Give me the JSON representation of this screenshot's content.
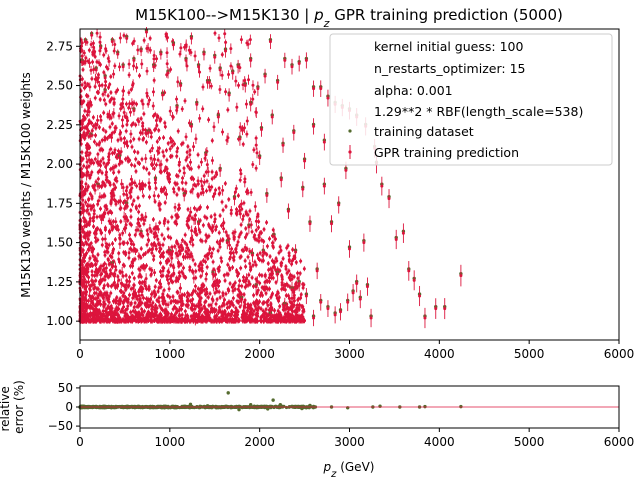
{
  "chart_data": [
    {
      "type": "scatter",
      "title_prefix": "M15K100-->M15K130 | ",
      "title_var": "p",
      "title_sub": "z",
      "title_suffix": " GPR training prediction (5000)",
      "xlabel": "",
      "ylabel": "M15K130 weights / M15K100 weights",
      "xlim": [
        0,
        6000
      ],
      "ylim": [
        0.88,
        2.86
      ],
      "xticks": [
        "0",
        "1000",
        "2000",
        "3000",
        "4000",
        "5000",
        "6000"
      ],
      "yticks": [
        "1.00",
        "1.25",
        "1.50",
        "1.75",
        "2.00",
        "2.25",
        "2.50",
        "2.75"
      ],
      "grid": false,
      "legend_placement": "top-right",
      "legend": [
        "kernel initial guess: 100",
        "n_restarts_optimizer: 15",
        "alpha: 0.001",
        "1.29**2 * RBF(length_scale=538)",
        "training dataset",
        "GPR training prediction"
      ],
      "colors": {
        "training": "#556b2f",
        "prediction": "#dc143c"
      },
      "series": [
        {
          "name": "training dataset",
          "marker": "point"
        },
        {
          "name": "GPR training prediction",
          "marker": "errorbar"
        }
      ],
      "points": [
        [
          20,
          2.65
        ],
        [
          60,
          2.78
        ],
        [
          130,
          2.82
        ],
        [
          180,
          2.6
        ],
        [
          230,
          2.74
        ],
        [
          280,
          2.55
        ],
        [
          360,
          2.78
        ],
        [
          420,
          2.7
        ],
        [
          480,
          2.62
        ],
        [
          520,
          2.8
        ],
        [
          600,
          2.66
        ],
        [
          680,
          2.72
        ],
        [
          740,
          2.84
        ],
        [
          820,
          2.62
        ],
        [
          900,
          2.7
        ],
        [
          980,
          2.58
        ],
        [
          1040,
          2.76
        ],
        [
          1120,
          2.5
        ],
        [
          1180,
          2.66
        ],
        [
          1240,
          2.8
        ],
        [
          1320,
          2.62
        ],
        [
          1380,
          2.7
        ],
        [
          1440,
          2.52
        ],
        [
          1500,
          2.68
        ],
        [
          1560,
          2.6
        ],
        [
          1620,
          2.72
        ],
        [
          1700,
          2.58
        ],
        [
          1760,
          2.62
        ],
        [
          1840,
          2.5
        ],
        [
          1900,
          2.66
        ],
        [
          1980,
          2.48
        ],
        [
          2060,
          2.56
        ],
        [
          2120,
          2.78
        ],
        [
          2200,
          2.52
        ],
        [
          2280,
          2.66
        ],
        [
          2360,
          2.62
        ],
        [
          2440,
          2.64
        ],
        [
          2520,
          2.66
        ],
        [
          2600,
          2.48
        ],
        [
          2680,
          2.48
        ],
        [
          2760,
          2.42
        ],
        [
          2840,
          2.38
        ],
        [
          2920,
          2.36
        ],
        [
          3000,
          2.34
        ],
        [
          3080,
          2.3
        ],
        [
          3180,
          2.24
        ],
        [
          3280,
          2.1
        ],
        [
          3300,
          2.0
        ],
        [
          3360,
          1.86
        ],
        [
          3440,
          1.78
        ],
        [
          3520,
          1.52
        ],
        [
          3600,
          1.56
        ],
        [
          3660,
          1.32
        ],
        [
          3720,
          1.26
        ],
        [
          3780,
          1.16
        ],
        [
          3840,
          1.02
        ],
        [
          3960,
          1.08
        ],
        [
          4060,
          1.08
        ],
        [
          4240,
          1.29
        ],
        [
          3240,
          1.02
        ],
        [
          3200,
          1.22
        ],
        [
          3120,
          1.14
        ],
        [
          3040,
          1.18
        ],
        [
          2980,
          1.12
        ],
        [
          2900,
          1.06
        ],
        [
          2840,
          1.04
        ],
        [
          2760,
          1.08
        ],
        [
          2680,
          1.12
        ],
        [
          2600,
          1.02
        ],
        [
          2520,
          1.16
        ],
        [
          2440,
          1.24
        ],
        [
          2360,
          1.2
        ],
        [
          2280,
          1.1
        ],
        [
          2200,
          1.3
        ],
        [
          2120,
          1.04
        ],
        [
          2040,
          1.44
        ],
        [
          1960,
          1.22
        ],
        [
          1880,
          1.6
        ],
        [
          1800,
          1.14
        ],
        [
          1720,
          1.78
        ],
        [
          1640,
          1.5
        ],
        [
          1560,
          1.96
        ],
        [
          1480,
          1.3
        ],
        [
          1400,
          2.06
        ],
        [
          1320,
          1.62
        ],
        [
          1240,
          2.24
        ],
        [
          1160,
          1.8
        ],
        [
          1080,
          2.36
        ],
        [
          1000,
          1.44
        ],
        [
          920,
          2.44
        ],
        [
          840,
          1.9
        ],
        [
          760,
          2.2
        ],
        [
          680,
          1.56
        ],
        [
          600,
          2.34
        ],
        [
          520,
          1.74
        ],
        [
          440,
          2.04
        ],
        [
          360,
          1.36
        ],
        [
          280,
          2.46
        ],
        [
          200,
          1.86
        ],
        [
          120,
          2.18
        ],
        [
          2640,
          1.32
        ],
        [
          2560,
          1.62
        ],
        [
          2480,
          1.84
        ],
        [
          2400,
          1.44
        ],
        [
          2320,
          1.7
        ],
        [
          2240,
          1.9
        ],
        [
          2160,
          1.54
        ],
        [
          2080,
          1.8
        ],
        [
          2000,
          2.04
        ],
        [
          1920,
          1.42
        ],
        [
          2880,
          1.74
        ],
        [
          2800,
          1.62
        ],
        [
          2720,
          1.86
        ],
        [
          3000,
          1.46
        ],
        [
          3080,
          1.24
        ],
        [
          3160,
          1.5
        ],
        [
          2960,
          1.96
        ],
        [
          2720,
          2.14
        ],
        [
          2600,
          2.24
        ],
        [
          2500,
          2.02
        ],
        [
          2380,
          2.2
        ],
        [
          2260,
          2.12
        ],
        [
          2140,
          2.3
        ],
        [
          2020,
          2.22
        ],
        [
          1900,
          2.38
        ],
        [
          1780,
          2.16
        ],
        [
          1660,
          2.44
        ],
        [
          1540,
          2.3
        ],
        [
          1420,
          2.52
        ],
        [
          1300,
          2.38
        ]
      ]
    },
    {
      "type": "scatter",
      "xlabel_var": "p",
      "xlabel_sub": "z",
      "xlabel_unit": " (GeV)",
      "ylabel_lines": [
        "relative",
        "error (%)"
      ],
      "xlim": [
        0,
        6000
      ],
      "ylim": [
        -55,
        55
      ],
      "xticks": [
        "0",
        "1000",
        "2000",
        "3000",
        "4000",
        "5000",
        "6000"
      ],
      "yticks": [
        "50",
        "0",
        "−50"
      ],
      "reference_line": 0,
      "points": [
        [
          1650,
          37
        ],
        [
          2150,
          18
        ],
        [
          1230,
          7
        ],
        [
          2230,
          6
        ],
        [
          1900,
          6
        ],
        [
          1770,
          -7
        ],
        [
          2090,
          -5
        ],
        [
          2560,
          4
        ],
        [
          1420,
          3
        ],
        [
          940,
          -2
        ],
        [
          2470,
          -4
        ],
        [
          2980,
          -2
        ],
        [
          3340,
          2
        ],
        [
          3840,
          1
        ],
        [
          4240,
          1
        ],
        [
          3560,
          0
        ],
        [
          3780,
          0
        ],
        [
          3260,
          0
        ],
        [
          2800,
          0
        ],
        [
          2620,
          0
        ]
      ]
    }
  ]
}
